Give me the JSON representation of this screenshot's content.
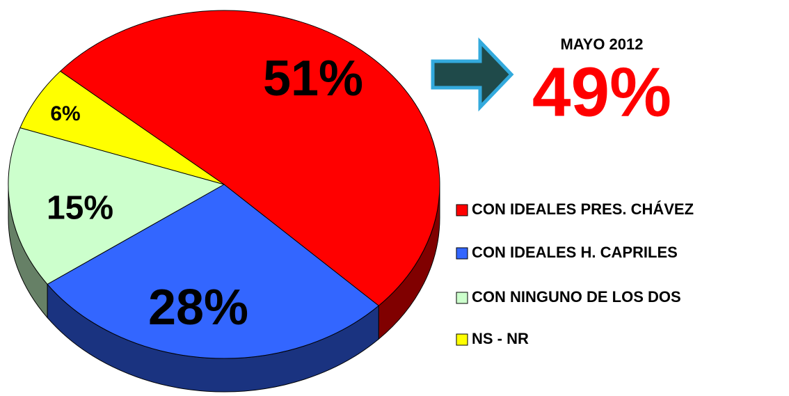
{
  "chart_data": {
    "type": "pie",
    "categories": [
      "CON IDEALES PRES. CHÁVEZ",
      "CON IDEALES H. CAPRILES",
      "CON NINGUNO DE LOS DOS",
      "NS - NR"
    ],
    "values": [
      51,
      28,
      15,
      6
    ],
    "value_labels": [
      "51%",
      "28%",
      "15%",
      "6%"
    ],
    "colors": [
      "#ff0000",
      "#3366ff",
      "#ccffcc",
      "#ffff00"
    ],
    "legend": "right",
    "annotations": [
      "MAYO 2012",
      "49%"
    ]
  }
}
